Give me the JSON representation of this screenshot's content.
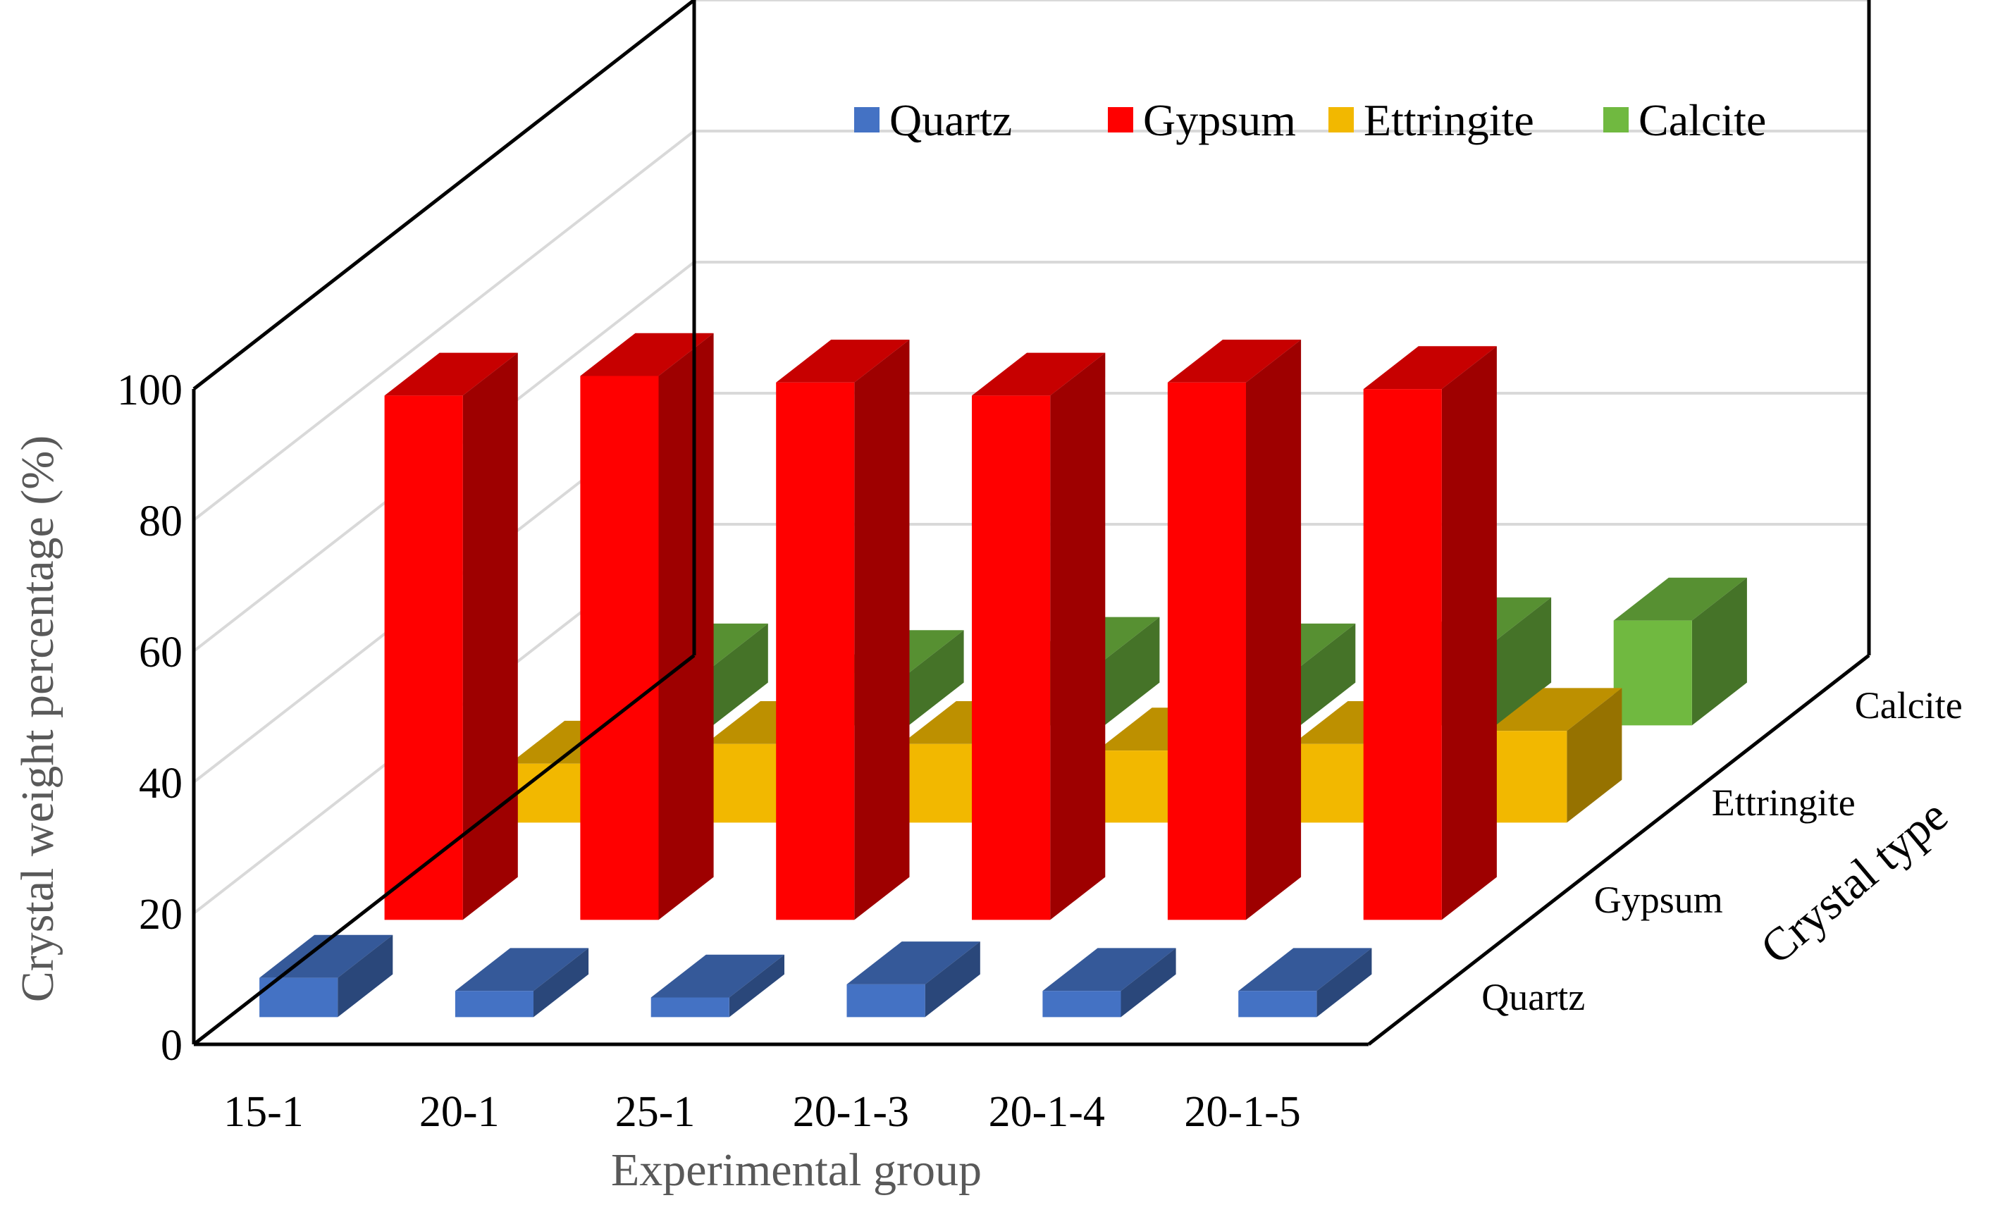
{
  "chart_data": {
    "type": "bar",
    "subtype": "3d-column",
    "categories": [
      "15-1",
      "20-1",
      "25-1",
      "20-1-3",
      "20-1-4",
      "20-1-5"
    ],
    "series": [
      {
        "name": "Quartz",
        "color": "#4472C4",
        "values": [
          6,
          4,
          3,
          5,
          4,
          4
        ]
      },
      {
        "name": "Gypsum",
        "color": "#FF0000",
        "values": [
          80,
          83,
          82,
          80,
          82,
          81
        ]
      },
      {
        "name": "Ettringite",
        "color": "#F2B800",
        "values": [
          9,
          12,
          12,
          11,
          12,
          14
        ]
      },
      {
        "name": "Calcite",
        "color": "#70B940",
        "values": [
          9,
          8,
          10,
          9,
          13,
          16
        ]
      }
    ],
    "xlabel": "Experimental group",
    "ylabel": "Crystal weight percentage (%)",
    "zlabel": "Crystal type",
    "depth_labels": [
      "Quartz",
      "Gypsum",
      "Ettringite",
      "Calcite"
    ],
    "y_ticks": [
      "0",
      "20",
      "40",
      "60",
      "80",
      "100"
    ],
    "ylim": [
      0,
      100
    ],
    "grid": true,
    "legend": {
      "position": "top-right",
      "entries": [
        "Quartz",
        "Gypsum",
        "Ettringite",
        "Calcite"
      ]
    }
  }
}
